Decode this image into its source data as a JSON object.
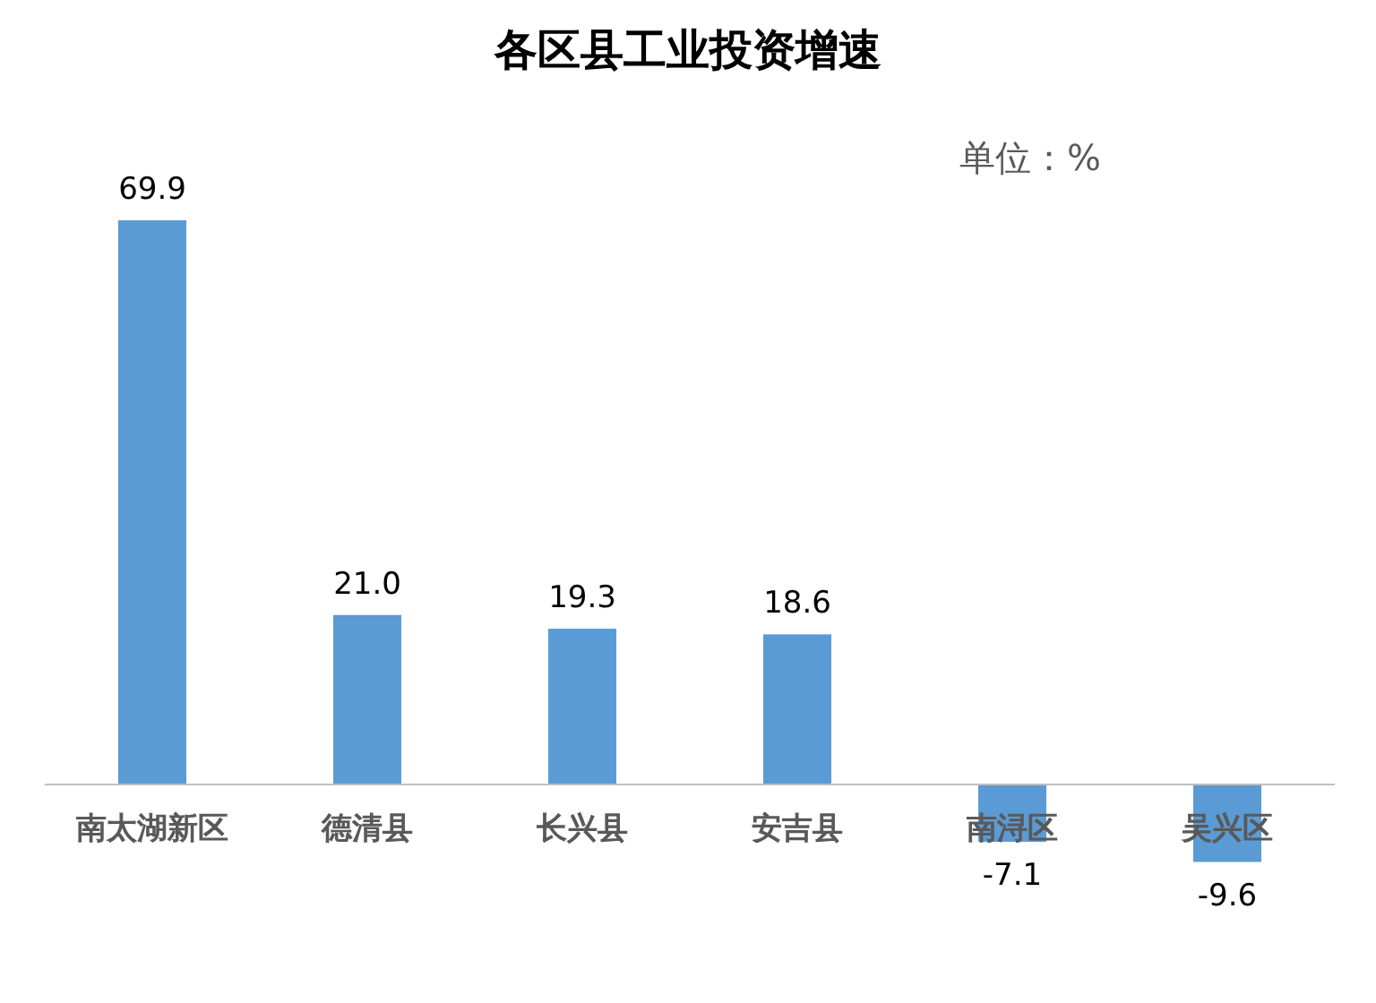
{
  "chart_data": {
    "type": "bar",
    "title": "各区县工业投资增速",
    "categories": [
      "南太湖新区",
      "德清县",
      "长兴县",
      "安吉县",
      "南浔区",
      "吴兴区"
    ],
    "values": [
      69.9,
      21.0,
      19.3,
      18.6,
      -7.1,
      -9.6
    ],
    "value_labels": [
      "69.9",
      "21.0",
      "19.3",
      "18.6",
      "-7.1",
      "-9.6"
    ],
    "color": "#5b9bd5",
    "annotations": [
      "单位：%"
    ]
  }
}
